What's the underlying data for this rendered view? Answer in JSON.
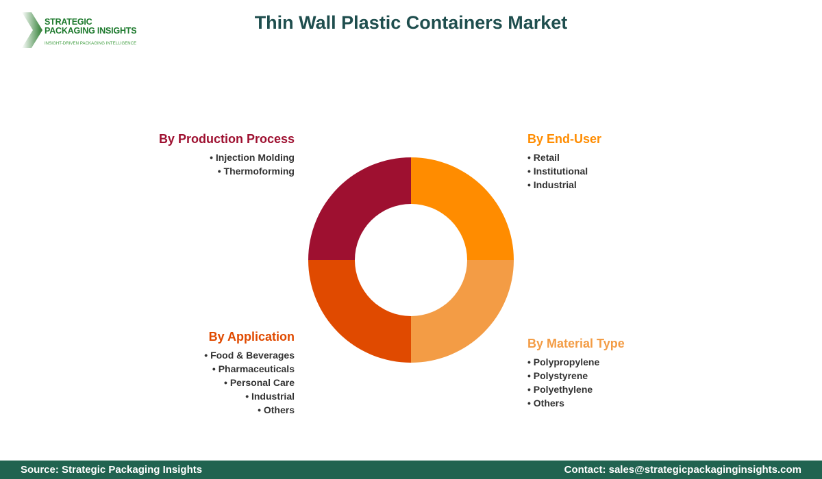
{
  "logo": {
    "line1": "STRATEGIC",
    "line2": "PACKAGING INSIGHTS",
    "tagline": "INSIGHT-DRIVEN PACKAGING INTELLIGENCE"
  },
  "title": "Thin Wall Plastic Containers Market",
  "segments": [
    {
      "title": "By End-User",
      "color": "#FF8C00",
      "items": [
        "Retail",
        "Institutional",
        "Industrial"
      ]
    },
    {
      "title": "By Material Type",
      "color": "#F39C45",
      "items": [
        "Polypropylene",
        "Polystyrene",
        "Polyethylene",
        "Others"
      ]
    },
    {
      "title": "By Application",
      "color": "#E04A00",
      "items": [
        "Food & Beverages",
        "Pharmaceuticals",
        "Personal Care",
        "Industrial",
        "Others"
      ]
    },
    {
      "title": "By Production Process",
      "color": "#9E1030",
      "items": [
        "Injection Molding",
        "Thermoforming"
      ]
    }
  ],
  "footer": {
    "source": "Source: Strategic Packaging Insights",
    "contact": "Contact: sales@strategicpackaginginsights.com"
  }
}
